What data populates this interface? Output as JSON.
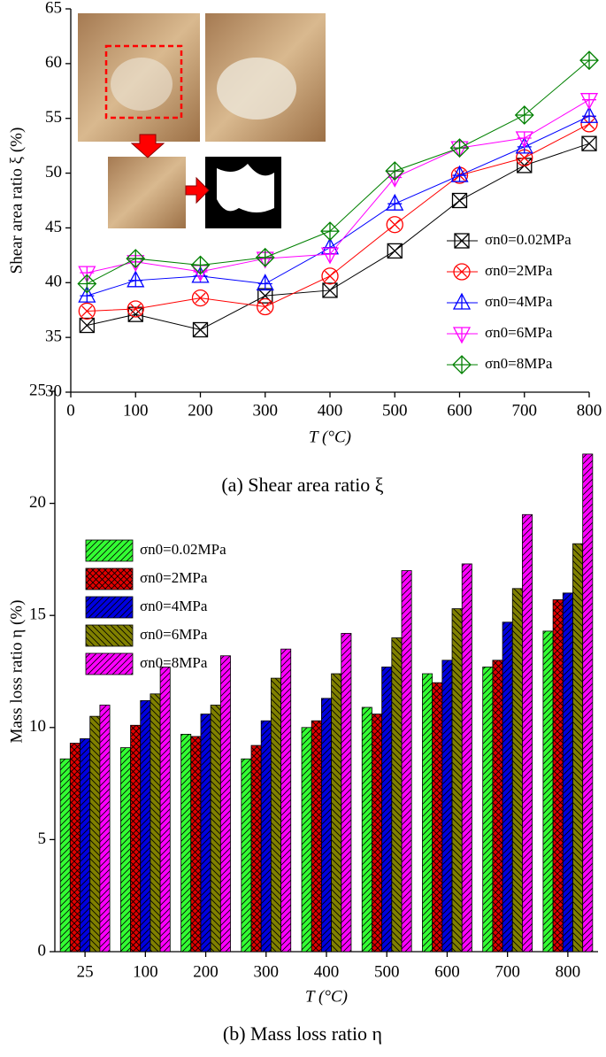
{
  "chart_data": [
    {
      "type": "line",
      "caption": "(a) Shear area ratio ξ",
      "x_label": "T (°C)",
      "y_label": "Shear area ratio ξ (%)",
      "x": [
        25,
        100,
        200,
        300,
        400,
        500,
        600,
        700,
        800
      ],
      "xlim": [
        0,
        800
      ],
      "xticks": [
        0,
        100,
        200,
        300,
        400,
        500,
        600,
        700,
        800
      ],
      "ylim": [
        30,
        65
      ],
      "yticks": [
        30,
        35,
        40,
        45,
        50,
        55,
        60,
        65
      ],
      "legend": "lower right",
      "series": [
        {
          "name": "σn0=0.02MPa",
          "color": "#000000",
          "marker": "square-x",
          "values": [
            36.1,
            37.1,
            35.7,
            38.8,
            39.3,
            42.9,
            47.5,
            50.7,
            52.7
          ]
        },
        {
          "name": "σn0=2MPa",
          "color": "#ff0000",
          "marker": "circle-x",
          "values": [
            37.4,
            37.6,
            38.6,
            37.8,
            40.6,
            45.3,
            49.8,
            51.4,
            54.5
          ]
        },
        {
          "name": "σn0=4MPa",
          "color": "#0000ff",
          "marker": "triangle-up",
          "values": [
            38.8,
            40.2,
            40.6,
            39.9,
            43.2,
            47.2,
            49.8,
            52.4,
            55.2
          ]
        },
        {
          "name": "σn0=6MPa",
          "color": "#ff00ff",
          "marker": "triangle-down",
          "values": [
            40.9,
            41.9,
            41.0,
            42.2,
            42.6,
            49.6,
            52.3,
            53.2,
            56.7
          ]
        },
        {
          "name": "σn0=8MPa",
          "color": "#008000",
          "marker": "diamond-plus",
          "values": [
            39.9,
            42.2,
            41.6,
            42.3,
            44.7,
            50.2,
            52.3,
            55.3,
            60.3
          ]
        }
      ]
    },
    {
      "type": "bar",
      "caption": "(b) Mass loss ratio η",
      "x_label": "T (°C)",
      "y_label": "Mass loss ratio η (%)",
      "categories": [
        "25",
        "100",
        "200",
        "300",
        "400",
        "500",
        "600",
        "700",
        "800"
      ],
      "ylim": [
        0,
        25
      ],
      "yticks": [
        0,
        5,
        10,
        15,
        20,
        25
      ],
      "legend": "upper left",
      "series": [
        {
          "name": "σn0=0.02MPa",
          "color": "#33ff33",
          "values": [
            8.6,
            9.1,
            9.7,
            8.6,
            10.0,
            10.9,
            12.4,
            12.7,
            14.3
          ]
        },
        {
          "name": "σn0=2MPa",
          "color": "#e00000",
          "values": [
            9.3,
            10.1,
            9.6,
            9.2,
            10.3,
            10.6,
            12.0,
            13.0,
            15.7
          ]
        },
        {
          "name": "σn0=4MPa",
          "color": "#0000e0",
          "values": [
            9.5,
            11.2,
            10.6,
            10.3,
            11.3,
            12.7,
            13.0,
            14.7,
            16.0
          ]
        },
        {
          "name": "σn0=6MPa",
          "color": "#808000",
          "values": [
            10.5,
            11.5,
            11.0,
            12.2,
            12.4,
            14.0,
            15.3,
            16.2,
            18.2
          ]
        },
        {
          "name": "σn0=8MPa",
          "color": "#ff00ff",
          "values": [
            11.0,
            12.7,
            13.2,
            13.5,
            14.2,
            17.0,
            17.3,
            19.5,
            22.2
          ]
        }
      ]
    }
  ]
}
